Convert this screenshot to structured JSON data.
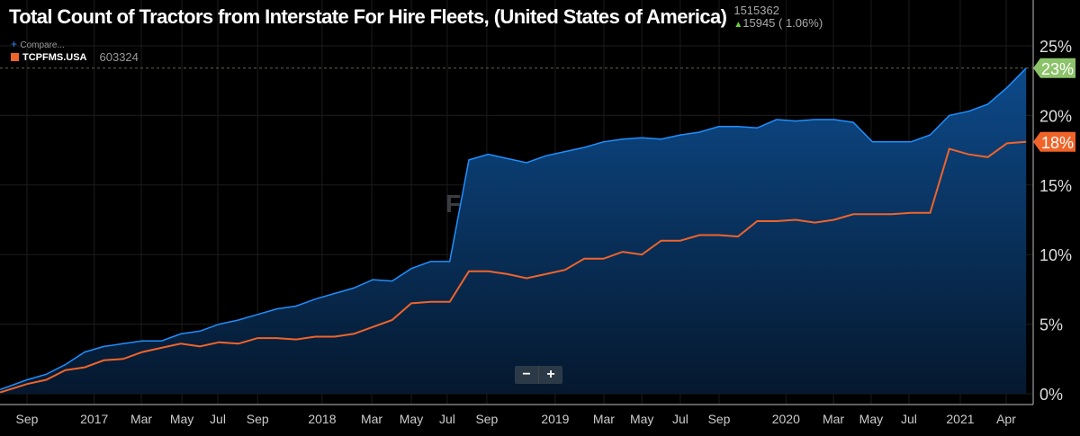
{
  "header": {
    "title": "Total Count of Tractors from Interstate For Hire Fleets, (United States of America)",
    "last_value": "1515362",
    "change": "15945 ( 1.06%)",
    "compare_label": "Compare...",
    "series_ticker": "TCPFMS.USA",
    "series_value": "603324"
  },
  "watermark": {
    "line1": "FREIGHTWAVES",
    "line2": "SONAR"
  },
  "zoom_controls": {
    "minus": "−",
    "plus": "+"
  },
  "chart_data": {
    "type": "area",
    "title": "Total Count of Tractors from Interstate For Hire Fleets, (United States of America)",
    "x_unit": "months since Sep 2016",
    "x_start": -1.4,
    "x": [
      -1.4,
      0,
      1,
      2,
      3,
      4,
      5,
      6,
      7,
      8,
      9,
      10,
      11,
      12,
      13,
      14,
      15,
      16,
      17,
      18,
      19,
      20,
      21,
      22,
      23,
      24,
      25,
      26,
      27,
      28,
      29,
      30,
      31,
      32,
      33,
      34,
      35,
      36,
      37,
      38,
      39,
      40,
      41,
      42,
      43,
      44,
      45,
      46,
      47,
      48,
      49,
      50,
      51,
      52
    ],
    "series": [
      {
        "name": "Total Count of Tractors (% change)",
        "color": "#1e90ff",
        "end_label": "23%",
        "end_label_color": "#8cc36a",
        "values": [
          0.3,
          1.0,
          1.4,
          2.1,
          3.0,
          3.4,
          3.6,
          3.8,
          3.8,
          4.3,
          4.5,
          5.0,
          5.3,
          5.7,
          6.1,
          6.3,
          6.8,
          7.2,
          7.6,
          8.2,
          8.1,
          9.0,
          9.5,
          9.5,
          16.8,
          17.2,
          16.9,
          16.6,
          17.1,
          17.4,
          17.7,
          18.1,
          18.3,
          18.4,
          18.3,
          18.6,
          18.8,
          19.2,
          19.2,
          19.1,
          19.7,
          19.6,
          19.7,
          19.7,
          19.5,
          18.1,
          18.1,
          18.1,
          18.6,
          20.0,
          20.3,
          20.8,
          22.0,
          23.4
        ]
      },
      {
        "name": "TCPFMS.USA",
        "color": "#f0642a",
        "end_label": "18%",
        "end_label_color": "#f0642a",
        "values": [
          0.1,
          0.7,
          1.0,
          1.7,
          1.9,
          2.4,
          2.5,
          3.0,
          3.3,
          3.6,
          3.4,
          3.7,
          3.6,
          4.0,
          4.0,
          3.9,
          4.1,
          4.1,
          4.3,
          4.8,
          5.3,
          6.5,
          6.6,
          6.6,
          8.8,
          8.8,
          8.6,
          8.3,
          8.6,
          8.9,
          9.7,
          9.7,
          10.2,
          10.0,
          11.0,
          11.0,
          11.4,
          11.4,
          11.3,
          12.4,
          12.4,
          12.5,
          12.3,
          12.5,
          12.9,
          12.9,
          12.9,
          13.0,
          13.0,
          17.6,
          17.2,
          17.0,
          18.0,
          18.1
        ]
      }
    ],
    "x_ticks": [
      {
        "label": "Sep",
        "at": 0
      },
      {
        "label": "2017",
        "at": 3.5
      },
      {
        "label": "Mar",
        "at": 5.95
      },
      {
        "label": "May",
        "at": 8.06
      },
      {
        "label": "Jul",
        "at": 9.93
      },
      {
        "label": "Sep",
        "at": 12
      },
      {
        "label": "2018",
        "at": 15.36
      },
      {
        "label": "Mar",
        "at": 17.94
      },
      {
        "label": "May",
        "at": 20
      },
      {
        "label": "Jul",
        "at": 21.87
      },
      {
        "label": "Sep",
        "at": 23.93
      },
      {
        "label": "2019",
        "at": 27.49
      },
      {
        "label": "Mar",
        "at": 30.02
      },
      {
        "label": "May",
        "at": 32
      },
      {
        "label": "Jul",
        "at": 34
      },
      {
        "label": "Sep",
        "at": 36.02
      },
      {
        "label": "2020",
        "at": 39.5
      },
      {
        "label": "Mar",
        "at": 41.97
      },
      {
        "label": "May",
        "at": 43.93
      },
      {
        "label": "Jul",
        "at": 45.9
      },
      {
        "label": "2021",
        "at": 48.57
      },
      {
        "label": "Apr",
        "at": 50.96
      }
    ],
    "y_ticks": [
      {
        "label": "0%",
        "v": 0
      },
      {
        "label": "5%",
        "v": 5
      },
      {
        "label": "10%",
        "v": 10
      },
      {
        "label": "15%",
        "v": 15
      },
      {
        "label": "20%",
        "v": 20
      },
      {
        "label": "25%",
        "v": 25
      }
    ],
    "ylim": [
      0,
      28
    ],
    "grid": true
  }
}
